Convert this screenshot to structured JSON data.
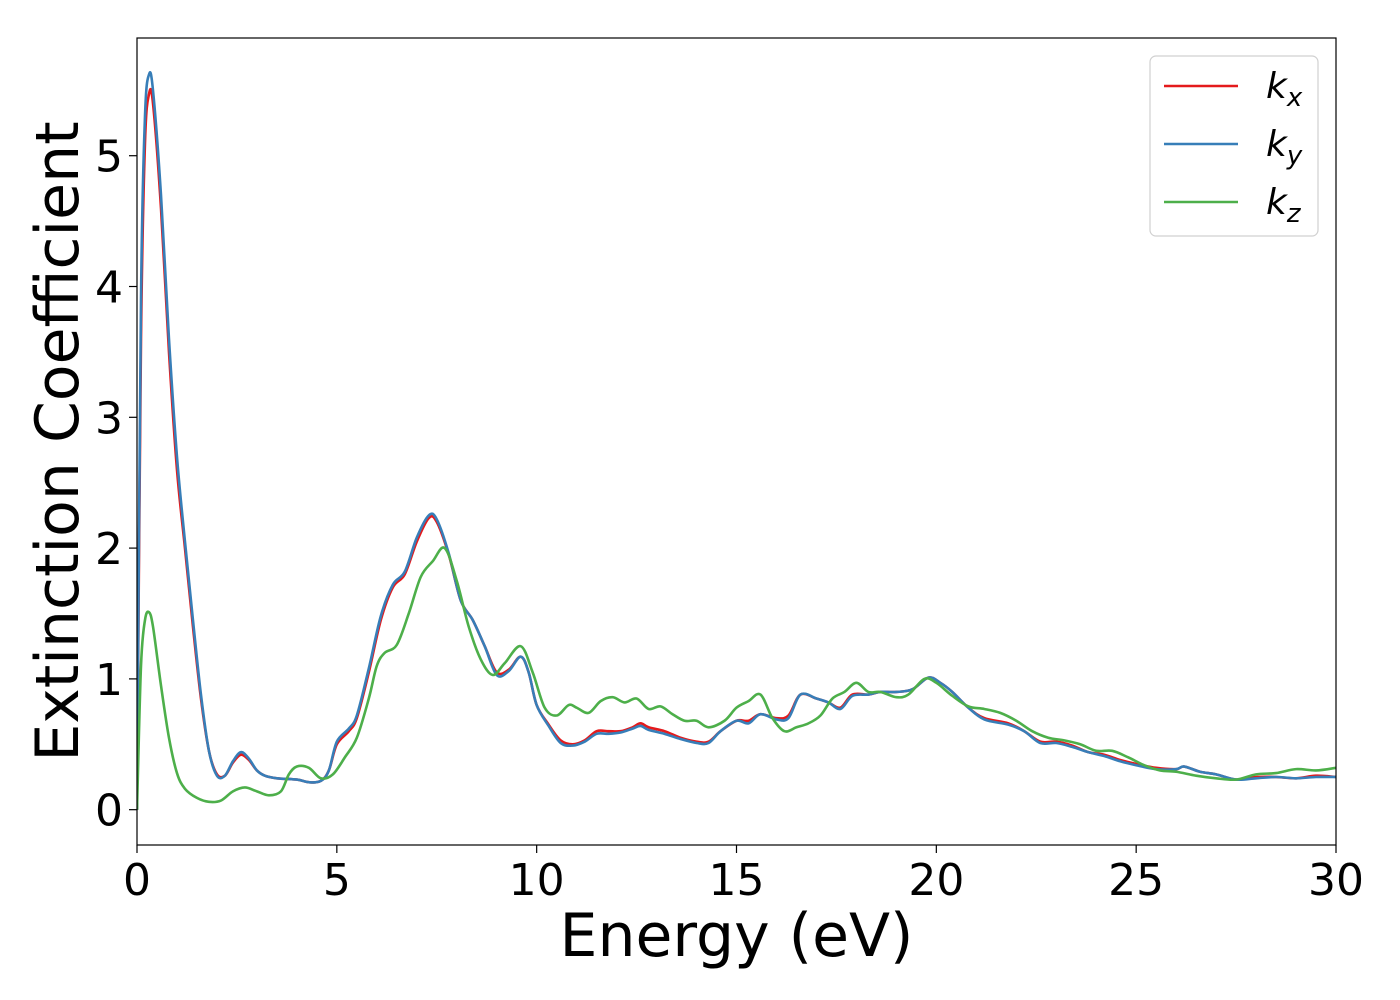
{
  "chart_data": {
    "type": "line",
    "title": "",
    "xlabel": "Energy (eV)",
    "ylabel": "Extinction Coefficient",
    "xlim": [
      0,
      30
    ],
    "ylim": [
      -0.27,
      5.9
    ],
    "xticks": [
      0,
      5,
      10,
      15,
      20,
      25,
      30
    ],
    "yticks": [
      0,
      1,
      2,
      3,
      4,
      5
    ],
    "grid": false,
    "legend_position": "top-right",
    "series": [
      {
        "name": "k_x",
        "legend_base": "k",
        "legend_sub": "x",
        "color": "#e41a1c",
        "points": [
          [
            0,
            0
          ],
          [
            0.1,
            3.6
          ],
          [
            0.2,
            5.1
          ],
          [
            0.3,
            5.47
          ],
          [
            0.4,
            5.4
          ],
          [
            0.6,
            4.6
          ],
          [
            0.8,
            3.5
          ],
          [
            1.0,
            2.6
          ],
          [
            1.2,
            2.0
          ],
          [
            1.4,
            1.4
          ],
          [
            1.6,
            0.85
          ],
          [
            1.8,
            0.45
          ],
          [
            2.0,
            0.27
          ],
          [
            2.2,
            0.26
          ],
          [
            2.4,
            0.36
          ],
          [
            2.6,
            0.42
          ],
          [
            2.8,
            0.38
          ],
          [
            3.0,
            0.3
          ],
          [
            3.2,
            0.26
          ],
          [
            3.5,
            0.24
          ],
          [
            4.0,
            0.23
          ],
          [
            4.3,
            0.21
          ],
          [
            4.6,
            0.22
          ],
          [
            4.8,
            0.3
          ],
          [
            5.0,
            0.5
          ],
          [
            5.3,
            0.6
          ],
          [
            5.5,
            0.7
          ],
          [
            5.8,
            1.05
          ],
          [
            6.1,
            1.45
          ],
          [
            6.4,
            1.7
          ],
          [
            6.7,
            1.8
          ],
          [
            7.0,
            2.05
          ],
          [
            7.3,
            2.23
          ],
          [
            7.5,
            2.2
          ],
          [
            7.8,
            1.95
          ],
          [
            8.1,
            1.6
          ],
          [
            8.4,
            1.45
          ],
          [
            8.7,
            1.25
          ],
          [
            9.0,
            1.05
          ],
          [
            9.3,
            1.07
          ],
          [
            9.6,
            1.17
          ],
          [
            9.8,
            1.05
          ],
          [
            10.0,
            0.8
          ],
          [
            10.3,
            0.65
          ],
          [
            10.6,
            0.53
          ],
          [
            10.9,
            0.5
          ],
          [
            11.2,
            0.53
          ],
          [
            11.5,
            0.6
          ],
          [
            11.8,
            0.6
          ],
          [
            12.1,
            0.6
          ],
          [
            12.4,
            0.63
          ],
          [
            12.6,
            0.66
          ],
          [
            12.8,
            0.63
          ],
          [
            13.2,
            0.6
          ],
          [
            13.6,
            0.55
          ],
          [
            14.0,
            0.52
          ],
          [
            14.3,
            0.52
          ],
          [
            14.6,
            0.6
          ],
          [
            15.0,
            0.68
          ],
          [
            15.3,
            0.68
          ],
          [
            15.6,
            0.73
          ],
          [
            16.0,
            0.7
          ],
          [
            16.3,
            0.72
          ],
          [
            16.6,
            0.88
          ],
          [
            17.0,
            0.85
          ],
          [
            17.3,
            0.82
          ],
          [
            17.6,
            0.78
          ],
          [
            17.9,
            0.88
          ],
          [
            18.3,
            0.88
          ],
          [
            18.6,
            0.9
          ],
          [
            19.0,
            0.9
          ],
          [
            19.4,
            0.92
          ],
          [
            19.8,
            1.01
          ],
          [
            20.1,
            0.97
          ],
          [
            20.4,
            0.9
          ],
          [
            20.8,
            0.78
          ],
          [
            21.2,
            0.7
          ],
          [
            21.8,
            0.66
          ],
          [
            22.2,
            0.6
          ],
          [
            22.6,
            0.52
          ],
          [
            23.0,
            0.52
          ],
          [
            23.4,
            0.49
          ],
          [
            23.8,
            0.44
          ],
          [
            24.2,
            0.42
          ],
          [
            24.6,
            0.38
          ],
          [
            25.0,
            0.35
          ],
          [
            25.5,
            0.32
          ],
          [
            26.0,
            0.31
          ],
          [
            26.2,
            0.33
          ],
          [
            26.6,
            0.29
          ],
          [
            27.0,
            0.27
          ],
          [
            27.5,
            0.23
          ],
          [
            28.0,
            0.25
          ],
          [
            28.5,
            0.25
          ],
          [
            29.0,
            0.24
          ],
          [
            29.5,
            0.26
          ],
          [
            30.0,
            0.25
          ]
        ]
      },
      {
        "name": "k_y",
        "legend_base": "k",
        "legend_sub": "y",
        "color": "#377eb8",
        "points": [
          [
            0,
            0
          ],
          [
            0.1,
            3.9
          ],
          [
            0.2,
            5.3
          ],
          [
            0.3,
            5.62
          ],
          [
            0.4,
            5.5
          ],
          [
            0.6,
            4.7
          ],
          [
            0.8,
            3.6
          ],
          [
            1.0,
            2.7
          ],
          [
            1.2,
            2.05
          ],
          [
            1.4,
            1.45
          ],
          [
            1.6,
            0.88
          ],
          [
            1.8,
            0.45
          ],
          [
            2.0,
            0.26
          ],
          [
            2.2,
            0.26
          ],
          [
            2.4,
            0.37
          ],
          [
            2.6,
            0.44
          ],
          [
            2.8,
            0.39
          ],
          [
            3.0,
            0.3
          ],
          [
            3.2,
            0.26
          ],
          [
            3.5,
            0.24
          ],
          [
            4.0,
            0.23
          ],
          [
            4.3,
            0.21
          ],
          [
            4.6,
            0.22
          ],
          [
            4.8,
            0.3
          ],
          [
            5.0,
            0.52
          ],
          [
            5.3,
            0.62
          ],
          [
            5.5,
            0.72
          ],
          [
            5.8,
            1.08
          ],
          [
            6.1,
            1.48
          ],
          [
            6.4,
            1.72
          ],
          [
            6.7,
            1.82
          ],
          [
            7.0,
            2.08
          ],
          [
            7.3,
            2.25
          ],
          [
            7.5,
            2.22
          ],
          [
            7.8,
            1.96
          ],
          [
            8.1,
            1.6
          ],
          [
            8.4,
            1.45
          ],
          [
            8.7,
            1.25
          ],
          [
            9.0,
            1.03
          ],
          [
            9.3,
            1.06
          ],
          [
            9.6,
            1.17
          ],
          [
            9.8,
            1.05
          ],
          [
            10.0,
            0.8
          ],
          [
            10.3,
            0.64
          ],
          [
            10.6,
            0.51
          ],
          [
            10.9,
            0.49
          ],
          [
            11.2,
            0.52
          ],
          [
            11.5,
            0.58
          ],
          [
            11.8,
            0.58
          ],
          [
            12.1,
            0.59
          ],
          [
            12.4,
            0.62
          ],
          [
            12.6,
            0.64
          ],
          [
            12.8,
            0.61
          ],
          [
            13.2,
            0.58
          ],
          [
            13.6,
            0.54
          ],
          [
            14.0,
            0.51
          ],
          [
            14.3,
            0.51
          ],
          [
            14.6,
            0.6
          ],
          [
            15.0,
            0.68
          ],
          [
            15.3,
            0.66
          ],
          [
            15.6,
            0.73
          ],
          [
            16.0,
            0.69
          ],
          [
            16.3,
            0.7
          ],
          [
            16.6,
            0.88
          ],
          [
            17.0,
            0.85
          ],
          [
            17.3,
            0.82
          ],
          [
            17.6,
            0.77
          ],
          [
            17.9,
            0.87
          ],
          [
            18.3,
            0.88
          ],
          [
            18.6,
            0.9
          ],
          [
            19.0,
            0.9
          ],
          [
            19.4,
            0.92
          ],
          [
            19.8,
            1.01
          ],
          [
            20.1,
            0.97
          ],
          [
            20.4,
            0.9
          ],
          [
            20.8,
            0.78
          ],
          [
            21.2,
            0.69
          ],
          [
            21.8,
            0.65
          ],
          [
            22.2,
            0.6
          ],
          [
            22.6,
            0.51
          ],
          [
            23.0,
            0.51
          ],
          [
            23.4,
            0.48
          ],
          [
            23.8,
            0.44
          ],
          [
            24.2,
            0.41
          ],
          [
            24.6,
            0.37
          ],
          [
            25.0,
            0.34
          ],
          [
            25.5,
            0.31
          ],
          [
            26.0,
            0.31
          ],
          [
            26.2,
            0.33
          ],
          [
            26.6,
            0.29
          ],
          [
            27.0,
            0.27
          ],
          [
            27.5,
            0.23
          ],
          [
            28.0,
            0.24
          ],
          [
            28.5,
            0.25
          ],
          [
            29.0,
            0.24
          ],
          [
            29.5,
            0.25
          ],
          [
            30.0,
            0.25
          ]
        ]
      },
      {
        "name": "k_z",
        "legend_base": "k",
        "legend_sub": "z",
        "color": "#4daf4a",
        "points": [
          [
            0,
            0
          ],
          [
            0.1,
            1.1
          ],
          [
            0.2,
            1.45
          ],
          [
            0.3,
            1.51
          ],
          [
            0.4,
            1.4
          ],
          [
            0.6,
            0.95
          ],
          [
            0.8,
            0.55
          ],
          [
            1.0,
            0.28
          ],
          [
            1.2,
            0.16
          ],
          [
            1.5,
            0.09
          ],
          [
            1.8,
            0.06
          ],
          [
            2.1,
            0.07
          ],
          [
            2.4,
            0.14
          ],
          [
            2.7,
            0.17
          ],
          [
            3.0,
            0.14
          ],
          [
            3.3,
            0.11
          ],
          [
            3.6,
            0.14
          ],
          [
            3.8,
            0.27
          ],
          [
            4.0,
            0.33
          ],
          [
            4.3,
            0.32
          ],
          [
            4.6,
            0.24
          ],
          [
            4.9,
            0.27
          ],
          [
            5.2,
            0.4
          ],
          [
            5.5,
            0.55
          ],
          [
            5.8,
            0.85
          ],
          [
            6.0,
            1.1
          ],
          [
            6.2,
            1.2
          ],
          [
            6.5,
            1.26
          ],
          [
            6.8,
            1.5
          ],
          [
            7.1,
            1.78
          ],
          [
            7.4,
            1.9
          ],
          [
            7.7,
            2.0
          ],
          [
            8.0,
            1.75
          ],
          [
            8.3,
            1.4
          ],
          [
            8.6,
            1.15
          ],
          [
            8.9,
            1.03
          ],
          [
            9.2,
            1.12
          ],
          [
            9.6,
            1.25
          ],
          [
            9.9,
            1.05
          ],
          [
            10.2,
            0.78
          ],
          [
            10.5,
            0.72
          ],
          [
            10.8,
            0.8
          ],
          [
            11.0,
            0.78
          ],
          [
            11.3,
            0.74
          ],
          [
            11.6,
            0.83
          ],
          [
            11.9,
            0.86
          ],
          [
            12.2,
            0.82
          ],
          [
            12.5,
            0.85
          ],
          [
            12.8,
            0.77
          ],
          [
            13.1,
            0.79
          ],
          [
            13.4,
            0.73
          ],
          [
            13.7,
            0.68
          ],
          [
            14.0,
            0.68
          ],
          [
            14.3,
            0.63
          ],
          [
            14.7,
            0.68
          ],
          [
            15.0,
            0.78
          ],
          [
            15.3,
            0.83
          ],
          [
            15.6,
            0.88
          ],
          [
            15.9,
            0.7
          ],
          [
            16.2,
            0.6
          ],
          [
            16.5,
            0.63
          ],
          [
            16.8,
            0.66
          ],
          [
            17.1,
            0.72
          ],
          [
            17.4,
            0.85
          ],
          [
            17.7,
            0.9
          ],
          [
            18.0,
            0.97
          ],
          [
            18.3,
            0.9
          ],
          [
            18.6,
            0.9
          ],
          [
            19.0,
            0.86
          ],
          [
            19.3,
            0.88
          ],
          [
            19.7,
            1.0
          ],
          [
            20.0,
            0.97
          ],
          [
            20.4,
            0.87
          ],
          [
            20.8,
            0.79
          ],
          [
            21.2,
            0.77
          ],
          [
            21.6,
            0.74
          ],
          [
            22.0,
            0.68
          ],
          [
            22.4,
            0.6
          ],
          [
            22.8,
            0.55
          ],
          [
            23.2,
            0.53
          ],
          [
            23.6,
            0.5
          ],
          [
            24.0,
            0.45
          ],
          [
            24.4,
            0.45
          ],
          [
            24.8,
            0.4
          ],
          [
            25.2,
            0.34
          ],
          [
            25.6,
            0.3
          ],
          [
            26.0,
            0.29
          ],
          [
            26.5,
            0.26
          ],
          [
            27.0,
            0.24
          ],
          [
            27.5,
            0.23
          ],
          [
            28.0,
            0.27
          ],
          [
            28.5,
            0.28
          ],
          [
            29.0,
            0.31
          ],
          [
            29.5,
            0.3
          ],
          [
            30.0,
            0.32
          ]
        ]
      }
    ]
  }
}
